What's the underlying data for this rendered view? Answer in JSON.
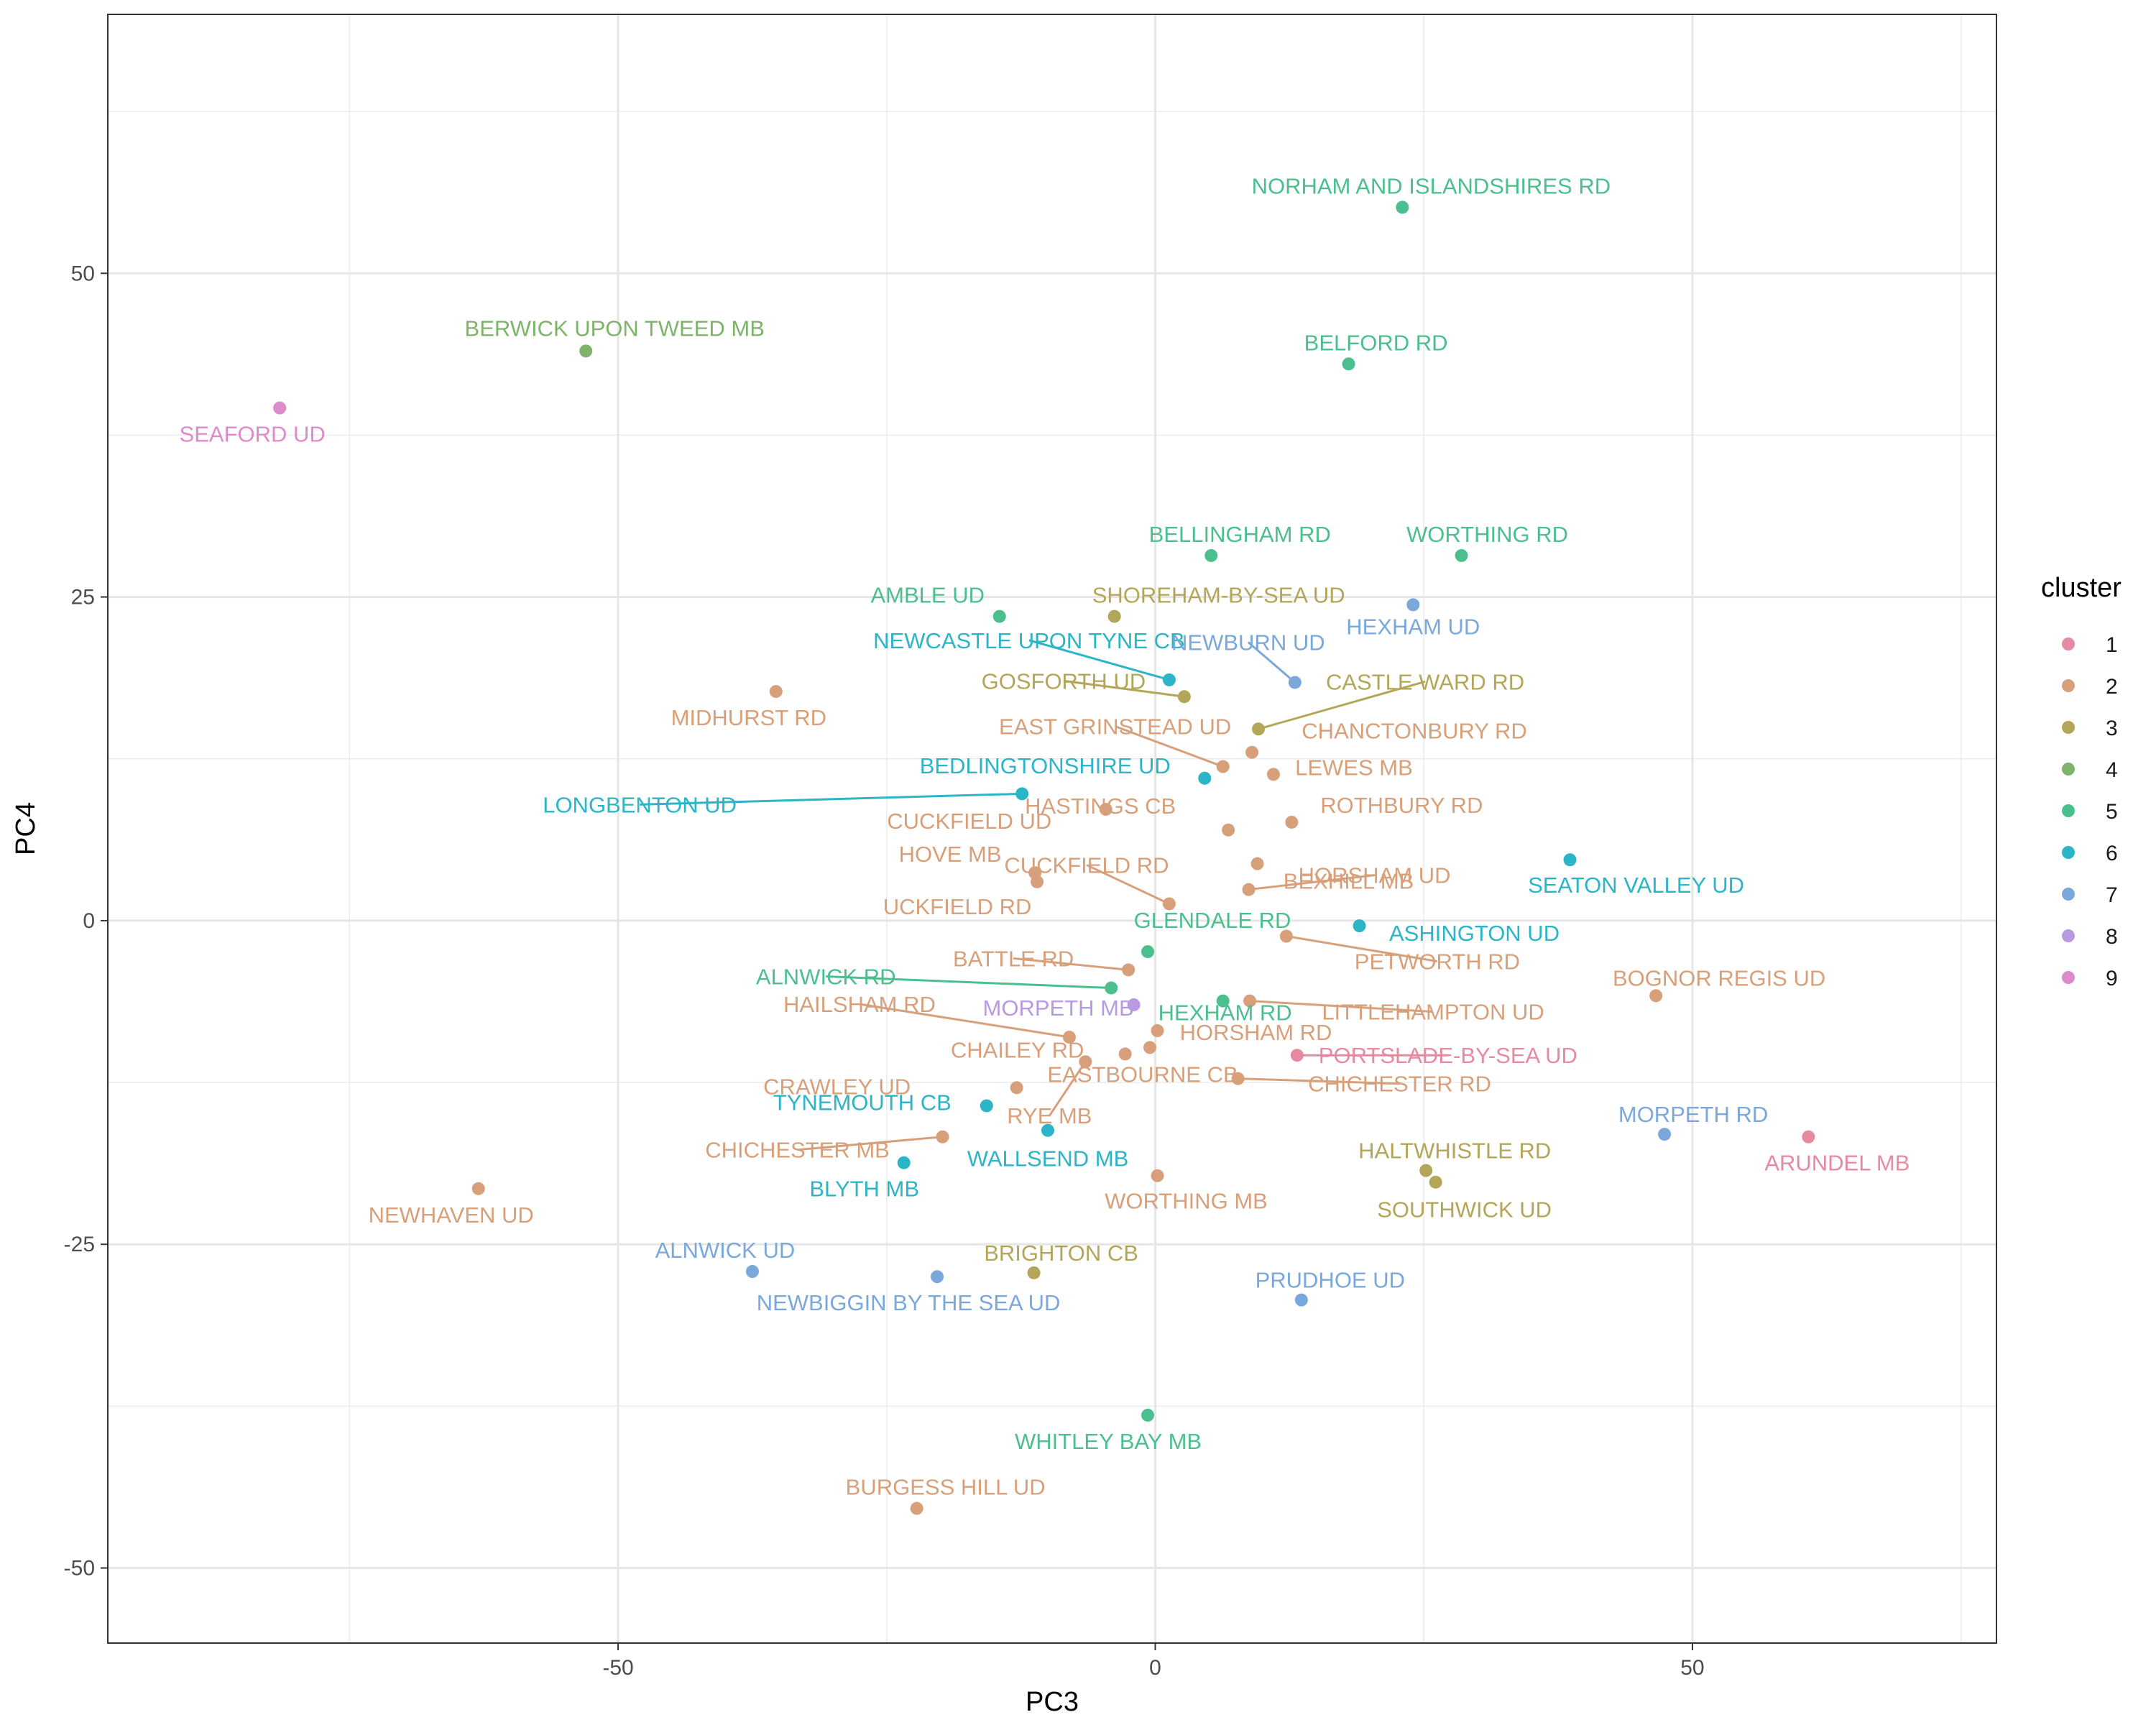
{
  "chart_data": {
    "type": "scatter",
    "title": "",
    "xlabel": "PC3",
    "ylabel": "PC4",
    "xlim": [
      -97.5,
      78.3
    ],
    "ylim": [
      -55.8,
      70
    ],
    "x_ticks": [
      -50,
      0,
      50
    ],
    "y_ticks": [
      -50,
      -25,
      0,
      25,
      50
    ],
    "grid": true,
    "legend": {
      "title": "cluster",
      "position": "right",
      "entries": [
        "1",
        "2",
        "3",
        "4",
        "5",
        "6",
        "7",
        "8",
        "9"
      ]
    },
    "colors": {
      "1": "#E58AA0",
      "2": "#D8A07A",
      "3": "#B3A658",
      "4": "#7DB46A",
      "5": "#4BBF8E",
      "6": "#2BB5C6",
      "7": "#7BA8DA",
      "8": "#B99AE0",
      "9": "#DD8BCC"
    },
    "points": [
      {
        "label": "NORHAM AND ISLANDSHIRES RD",
        "cluster": "5",
        "x": 23.0,
        "y": 55.1
      },
      {
        "label": "BELFORD RD",
        "cluster": "5",
        "x": 18.0,
        "y": 43.0
      },
      {
        "label": "BERWICK UPON TWEED MB",
        "cluster": "4",
        "x": -53.0,
        "y": 44.0
      },
      {
        "label": "SEAFORD UD",
        "cluster": "9",
        "x": -81.5,
        "y": 39.6
      },
      {
        "label": "BELLINGHAM RD",
        "cluster": "5",
        "x": 5.2,
        "y": 28.2
      },
      {
        "label": "WORTHING RD",
        "cluster": "5",
        "x": 28.5,
        "y": 28.2
      },
      {
        "label": "AMBLE UD",
        "cluster": "5",
        "x": -14.5,
        "y": 23.5
      },
      {
        "label": "SHOREHAM-BY-SEA UD",
        "cluster": "3",
        "x": -3.8,
        "y": 23.5
      },
      {
        "label": "HEXHAM UD",
        "cluster": "7",
        "x": 24.0,
        "y": 24.4
      },
      {
        "label": "NEWCASTLE UPON TYNE CB",
        "cluster": "6",
        "x": 1.3,
        "y": 18.6
      },
      {
        "label": "NEWBURN UD",
        "cluster": "7",
        "x": 13.0,
        "y": 18.4
      },
      {
        "label": "GOSFORTH UD",
        "cluster": "3",
        "x": 2.7,
        "y": 17.3
      },
      {
        "label": "CASTLE WARD RD",
        "cluster": "3",
        "x": 9.6,
        "y": 14.8
      },
      {
        "label": "MIDHURST RD",
        "cluster": "2",
        "x": -35.3,
        "y": 17.7
      },
      {
        "label": "EAST GRINSTEAD UD",
        "cluster": "2",
        "x": 6.3,
        "y": 11.9
      },
      {
        "label": "CHANCTONBURY RD",
        "cluster": "2",
        "x": 9.0,
        "y": 13.0
      },
      {
        "label": "LEWES MB",
        "cluster": "2",
        "x": 11.0,
        "y": 11.3
      },
      {
        "label": "BEDLINGTONSHIRE UD",
        "cluster": "6",
        "x": 4.6,
        "y": 11.0
      },
      {
        "label": "LONGBENTON UD",
        "cluster": "6",
        "x": -12.4,
        "y": 9.8
      },
      {
        "label": "CUCKFIELD UD",
        "cluster": "2",
        "x": -4.6,
        "y": 8.6
      },
      {
        "label": "HASTINGS CB",
        "cluster": "2",
        "x": 6.8,
        "y": 7.0
      },
      {
        "label": "ROTHBURY RD",
        "cluster": "2",
        "x": 12.7,
        "y": 7.6
      },
      {
        "label": "BEXHILL MB",
        "cluster": "2",
        "x": 9.5,
        "y": 4.4
      },
      {
        "label": "SEATON VALLEY UD",
        "cluster": "6",
        "x": 38.6,
        "y": 4.7
      },
      {
        "label": "HOVE MB",
        "cluster": "2",
        "x": -11.2,
        "y": 3.7
      },
      {
        "label": "UCKFIELD RD",
        "cluster": "2",
        "x": -11.0,
        "y": 3.0
      },
      {
        "label": "CUCKFIELD RD",
        "cluster": "2",
        "x": 1.3,
        "y": 1.3
      },
      {
        "label": "HORSHAM UD",
        "cluster": "2",
        "x": 8.7,
        "y": 2.4
      },
      {
        "label": "ASHINGTON UD",
        "cluster": "6",
        "x": 19.0,
        "y": -0.4
      },
      {
        "label": "GLENDALE RD",
        "cluster": "5",
        "x": -0.7,
        "y": -2.4
      },
      {
        "label": "PETWORTH RD",
        "cluster": "2",
        "x": 12.2,
        "y": -1.2
      },
      {
        "label": "BATTLE RD",
        "cluster": "2",
        "x": -2.5,
        "y": -3.8
      },
      {
        "label": "BOGNOR REGIS UD",
        "cluster": "2",
        "x": 46.6,
        "y": -5.8
      },
      {
        "label": "ALNWICK RD",
        "cluster": "5",
        "x": -4.1,
        "y": -5.2
      },
      {
        "label": "HEXHAM RD",
        "cluster": "5",
        "x": 6.3,
        "y": -6.2
      },
      {
        "label": "LITTLEHAMPTON UD",
        "cluster": "2",
        "x": 8.8,
        "y": -6.2
      },
      {
        "label": "MORPETH MB",
        "cluster": "8",
        "x": -2.0,
        "y": -6.5
      },
      {
        "label": "HORSHAM RD",
        "cluster": "2",
        "x": 0.2,
        "y": -8.5
      },
      {
        "label": "HAILSHAM RD",
        "cluster": "2",
        "x": -8.0,
        "y": -9.0
      },
      {
        "label": "PORTSLADE-BY-SEA UD",
        "cluster": "1",
        "x": 13.2,
        "y": -10.4
      },
      {
        "label": "EASTBOURNE CB",
        "cluster": "2",
        "x": -0.5,
        "y": -9.8
      },
      {
        "label": "CHAILEY RD",
        "cluster": "2",
        "x": -2.8,
        "y": -10.3
      },
      {
        "label": "RYE MB",
        "cluster": "2",
        "x": -6.5,
        "y": -10.9
      },
      {
        "label": "CHICHESTER RD",
        "cluster": "2",
        "x": 7.7,
        "y": -12.2
      },
      {
        "label": "CRAWLEY UD",
        "cluster": "2",
        "x": -12.9,
        "y": -12.9
      },
      {
        "label": "TYNEMOUTH CB",
        "cluster": "6",
        "x": -15.7,
        "y": -14.3
      },
      {
        "label": "MORPETH RD",
        "cluster": "7",
        "x": 47.4,
        "y": -16.5
      },
      {
        "label": "ARUNDEL MB",
        "cluster": "1",
        "x": 60.8,
        "y": -16.7
      },
      {
        "label": "WALLSEND MB",
        "cluster": "6",
        "x": -10.0,
        "y": -16.2
      },
      {
        "label": "CHICHESTER MB",
        "cluster": "2",
        "x": -19.8,
        "y": -16.7
      },
      {
        "label": "BLYTH MB",
        "cluster": "6",
        "x": -23.4,
        "y": -18.7
      },
      {
        "label": "HALTWHISTLE RD",
        "cluster": "3",
        "x": 25.2,
        "y": -19.3
      },
      {
        "label": "SOUTHWICK UD",
        "cluster": "3",
        "x": 26.1,
        "y": -20.2
      },
      {
        "label": "WORTHING MB",
        "cluster": "2",
        "x": 0.2,
        "y": -19.7
      },
      {
        "label": "NEWHAVEN UD",
        "cluster": "2",
        "x": -63.0,
        "y": -20.7
      },
      {
        "label": "ALNWICK UD",
        "cluster": "7",
        "x": -37.5,
        "y": -27.1
      },
      {
        "label": "NEWBIGGIN BY THE SEA UD",
        "cluster": "7",
        "x": -20.3,
        "y": -27.5
      },
      {
        "label": "BRIGHTON CB",
        "cluster": "3",
        "x": -11.3,
        "y": -27.2
      },
      {
        "label": "PRUDHOE UD",
        "cluster": "7",
        "x": 13.6,
        "y": -29.3
      },
      {
        "label": "WHITLEY BAY MB",
        "cluster": "5",
        "x": -0.7,
        "y": -38.2
      },
      {
        "label": "BURGESS HILL UD",
        "cluster": "2",
        "x": -22.2,
        "y": -45.4
      }
    ]
  }
}
